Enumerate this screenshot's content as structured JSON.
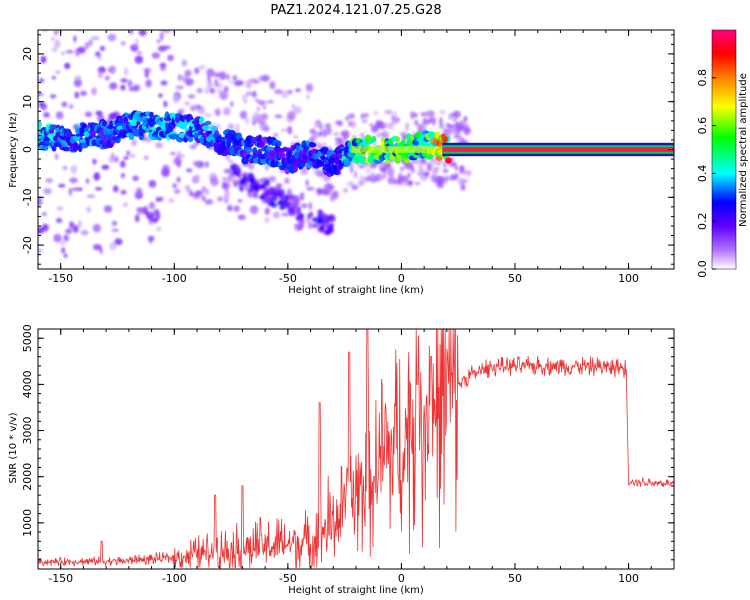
{
  "title": "PAZ1.2024.121.07.25.G28",
  "chart_data": [
    {
      "type": "heatmap",
      "xlabel": "Height of straight line (km)",
      "ylabel": "Frequency (Hz)",
      "xlim": [
        -160,
        120
      ],
      "ylim": [
        -25,
        25
      ],
      "xticks": [
        -150,
        -100,
        -50,
        0,
        50,
        100
      ],
      "yticks": [
        -20,
        -10,
        0,
        10,
        20
      ],
      "colorbar": {
        "label": "Normalized spectral amplitude",
        "range": [
          0,
          1
        ],
        "ticks": [
          "0.0",
          "0.2",
          "0.4",
          "0.6",
          "0.8"
        ],
        "colors": [
          "#ffffff",
          "#8000ff",
          "#0000ff",
          "#00ffff",
          "#00ff00",
          "#ffff00",
          "#ff8000",
          "#ff0000",
          "#ff0080"
        ]
      },
      "ridge": [
        {
          "x": -160,
          "y": 3,
          "amp": 0.4
        },
        {
          "x": -150,
          "y": 2,
          "amp": 0.35
        },
        {
          "x": -140,
          "y": 3,
          "amp": 0.35
        },
        {
          "x": -130,
          "y": 3,
          "amp": 0.3
        },
        {
          "x": -120,
          "y": 5,
          "amp": 0.35
        },
        {
          "x": -110,
          "y": 5,
          "amp": 0.4
        },
        {
          "x": -100,
          "y": 5,
          "amp": 0.35
        },
        {
          "x": -90,
          "y": 4,
          "amp": 0.35
        },
        {
          "x": -80,
          "y": 2,
          "amp": 0.3
        },
        {
          "x": -70,
          "y": 0,
          "amp": 0.3
        },
        {
          "x": -60,
          "y": 0,
          "amp": 0.3
        },
        {
          "x": -50,
          "y": -2,
          "amp": 0.3
        },
        {
          "x": -40,
          "y": -1,
          "amp": 0.3
        },
        {
          "x": -30,
          "y": -3,
          "amp": 0.3
        },
        {
          "x": -22,
          "y": 0,
          "amp": 0.5
        },
        {
          "x": -10,
          "y": 0,
          "amp": 0.6
        },
        {
          "x": 0,
          "y": 0,
          "amp": 0.55
        },
        {
          "x": 10,
          "y": 1,
          "amp": 0.5
        },
        {
          "x": 20,
          "y": 0,
          "amp": 0.9
        },
        {
          "x": 120,
          "y": 0,
          "amp": 0.9
        }
      ]
    },
    {
      "type": "line",
      "xlabel": "Height of straight line (km)",
      "ylabel": "SNR (10 * v/v)",
      "xlim": [
        -160,
        120
      ],
      "ylim": [
        0,
        5200
      ],
      "xticks": [
        -150,
        -100,
        -50,
        0,
        50,
        100
      ],
      "yticks": [
        1000,
        2000,
        3000,
        4000,
        5000
      ],
      "color": "#ee3333",
      "envelope": [
        {
          "x": -160,
          "y": 150
        },
        {
          "x": -120,
          "y": 180
        },
        {
          "x": -100,
          "y": 250
        },
        {
          "x": -80,
          "y": 400
        },
        {
          "x": -60,
          "y": 500
        },
        {
          "x": -40,
          "y": 600
        },
        {
          "x": -30,
          "y": 1000
        },
        {
          "x": -20,
          "y": 1600
        },
        {
          "x": -10,
          "y": 2200
        },
        {
          "x": 0,
          "y": 2800
        },
        {
          "x": 10,
          "y": 3300
        },
        {
          "x": 20,
          "y": 3800
        },
        {
          "x": 30,
          "y": 4200
        },
        {
          "x": 40,
          "y": 4380
        },
        {
          "x": 60,
          "y": 4400
        },
        {
          "x": 80,
          "y": 4400
        },
        {
          "x": 99,
          "y": 4350
        },
        {
          "x": 100,
          "y": 1900
        },
        {
          "x": 120,
          "y": 1850
        }
      ],
      "spikes": [
        {
          "x": -132,
          "y": 600
        },
        {
          "x": -82,
          "y": 1600
        },
        {
          "x": -70,
          "y": 1800
        },
        {
          "x": -36,
          "y": 3600
        },
        {
          "x": -23,
          "y": 4700
        },
        {
          "x": -15,
          "y": 5200
        },
        {
          "x": -12,
          "y": 2000
        },
        {
          "x": 7,
          "y": 4000
        },
        {
          "x": 13,
          "y": 4600
        }
      ]
    }
  ]
}
